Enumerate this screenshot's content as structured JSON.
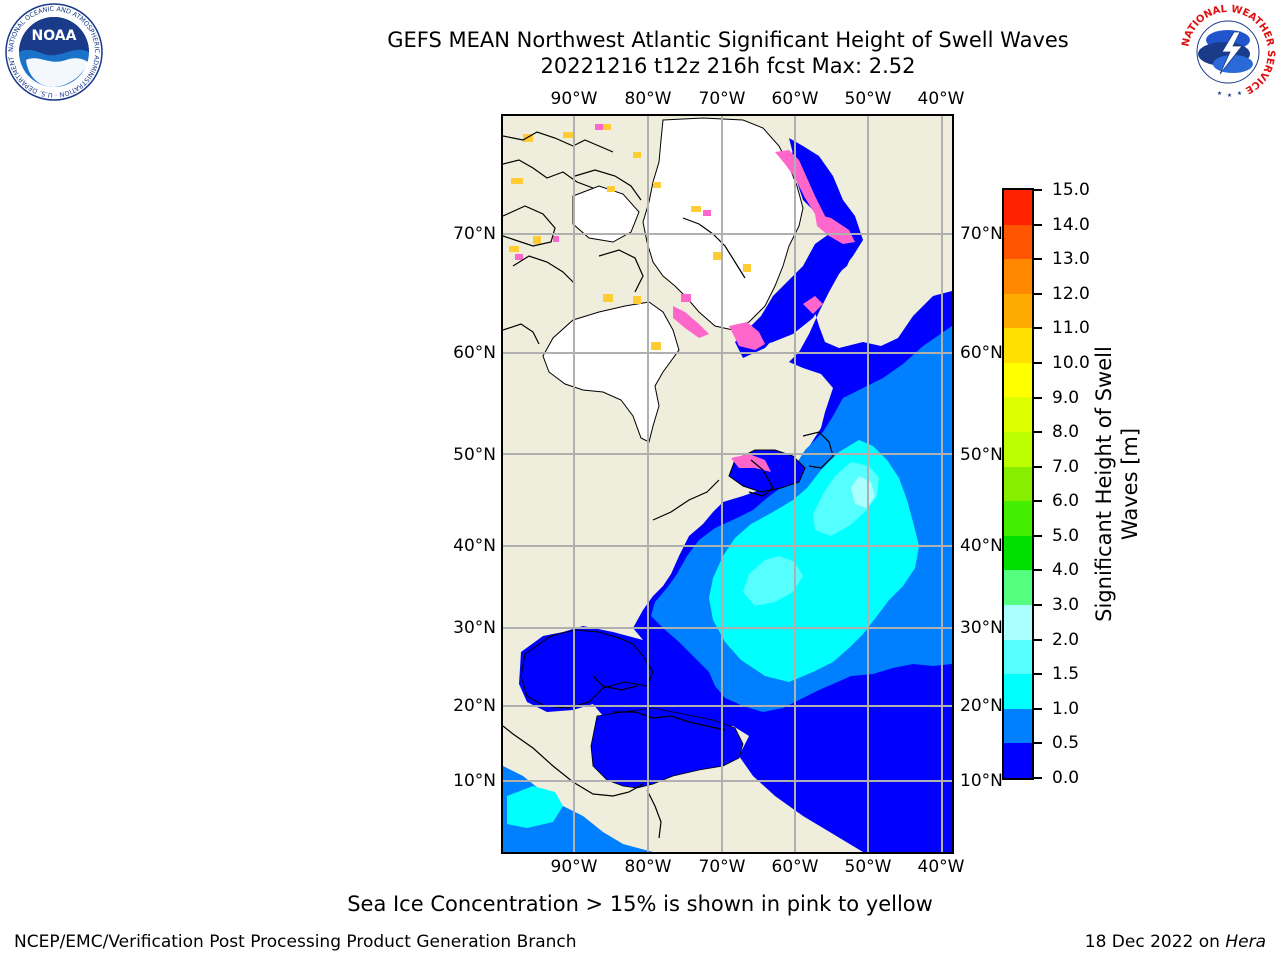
{
  "title": {
    "line1": "GEFS MEAN Northwest Atlantic Significant Height of Swell Waves",
    "line2": "20221216 t12z 216h fcst   Max: 2.52"
  },
  "map": {
    "lon_ticks": [
      "90°W",
      "80°W",
      "70°W",
      "60°W",
      "50°W",
      "40°W"
    ],
    "lat_ticks": [
      "70°N",
      "60°N",
      "50°N",
      "40°N",
      "30°N",
      "20°N",
      "10°N"
    ],
    "colors": {
      "land": "#efeedc",
      "ice_land": "#ffffff",
      "sea_0_0_5": "#0000ff",
      "sea_0_5_1_0": "#0080ff",
      "sea_1_0_1_5": "#00ffff",
      "sea_1_5_2_0": "#55ffff",
      "sea_2_0_3_0": "#aaffff",
      "ice_pink": "#ff66cc",
      "ice_yellow": "#ffcc33",
      "grid": "#b0b0b0"
    }
  },
  "colorbar": {
    "labels": [
      "0.0",
      "0.5",
      "1.0",
      "1.5",
      "2.0",
      "3.0",
      "4.0",
      "5.0",
      "6.0",
      "7.0",
      "8.0",
      "9.0",
      "10.0",
      "11.0",
      "12.0",
      "13.0",
      "14.0",
      "15.0"
    ],
    "colors": [
      "#0000ff",
      "#0080ff",
      "#00ffff",
      "#55ffff",
      "#aaffff",
      "#55ff80",
      "#00e000",
      "#44ee00",
      "#88ee00",
      "#bbff00",
      "#ddff00",
      "#ffff00",
      "#ffe000",
      "#ffaa00",
      "#ff8800",
      "#ff5500",
      "#ff2200"
    ],
    "title_line1": "Significant Height of Swell",
    "title_line2": "Waves [m]"
  },
  "footnote": "Sea Ice Concentration > 15% is shown in pink to yellow",
  "credit_left": "NCEP/EMC/Verification Post Processing Product Generation Branch",
  "credit_right_date": "18 Dec 2022 on",
  "credit_right_machine": "Hera",
  "logos": {
    "noaa_text": "NOAA",
    "noaa_ring_text": "NATIONAL OCEANIC AND ATMOSPHERIC ADMINISTRATION · U.S. DEPARTMENT OF COMMERCE",
    "nws_ring_text": "NATIONAL WEATHER SERVICE"
  }
}
